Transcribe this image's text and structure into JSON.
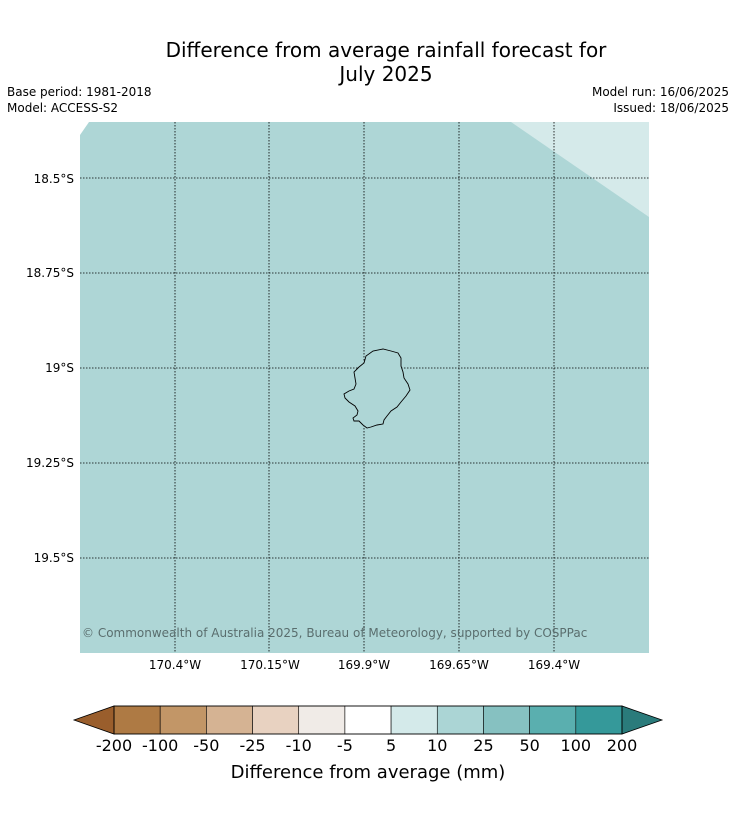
{
  "title": "Difference from average rainfall forecast for July 2025",
  "title_lines": [
    "Difference from average rainfall forecast for",
    "July 2025"
  ],
  "meta_left": {
    "base_period": "Base period: 1981-2018",
    "model": "Model: ACCESS-S2"
  },
  "meta_right": {
    "model_run": "Model run: 16/06/2025",
    "issued": "Issued: 18/06/2025"
  },
  "map": {
    "latitude_labels": [
      "18.5°S",
      "18.75°S",
      "19°S",
      "19.25°S",
      "19.5°S"
    ],
    "longitude_labels": [
      "170.4°W",
      "170.15°W",
      "169.9°W",
      "169.65°W",
      "169.4°W"
    ],
    "fill_color": "#aed6d6",
    "light_fill_color": "#d5eaea",
    "island_name": "Niue",
    "copyright": "© Commonwealth of Australia 2025, Bureau of Meteorology, supported by COSPPac"
  },
  "legend": {
    "label": "Difference from average (mm)",
    "ticks": [
      "-200",
      "-100",
      "-50",
      "-25",
      "-10",
      "-5",
      "5",
      "10",
      "25",
      "50",
      "100",
      "200"
    ],
    "under_color": "#9a5e2c",
    "over_color": "#2a7b7b",
    "colors": [
      "#ae7a44",
      "#c29667",
      "#d5b393",
      "#e8d2c1",
      "#f0ebe7",
      "#ffffff",
      "#d4eaea",
      "#abd5d5",
      "#86c1c1",
      "#5aafaf",
      "#35999a"
    ]
  }
}
